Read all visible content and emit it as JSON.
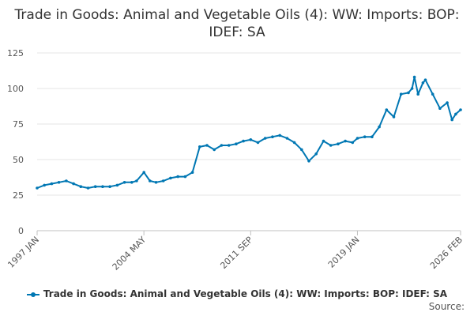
{
  "chart_data": {
    "type": "line",
    "title": "Trade in Goods: Animal and Vegetable Oils (4): WW: Imports: BOP: IDEF: SA",
    "xlabel": "",
    "ylabel": "",
    "ylim": [
      0,
      125
    ],
    "y_ticks": [
      0,
      25,
      50,
      75,
      100,
      125
    ],
    "x_tick_labels": [
      "1997 JAN",
      "2004 MAY",
      "2011 SEP",
      "2019 JAN",
      "2026 FEB"
    ],
    "grid": "horizontal",
    "legend_position": "bottom",
    "series": [
      {
        "name": "Trade in Goods: Animal and Vegetable Oils (4): WW: Imports: BOP: IDEF: SA",
        "color": "#0077b3",
        "points": [
          [
            "1997 JAN",
            30
          ],
          [
            "1997 JUL",
            32
          ],
          [
            "1998 JAN",
            33
          ],
          [
            "1998 JUL",
            34
          ],
          [
            "1999 JAN",
            35
          ],
          [
            "1999 JUL",
            33
          ],
          [
            "2000 JAN",
            31
          ],
          [
            "2000 JUL",
            30
          ],
          [
            "2001 JAN",
            31
          ],
          [
            "2001 JUL",
            31
          ],
          [
            "2002 JAN",
            31
          ],
          [
            "2002 JUL",
            32
          ],
          [
            "2003 JAN",
            34
          ],
          [
            "2003 JUL",
            34
          ],
          [
            "2003 NOV",
            35
          ],
          [
            "2004 MAY",
            41
          ],
          [
            "2004 OCT",
            35
          ],
          [
            "2005 MAR",
            34
          ],
          [
            "2005 SEP",
            35
          ],
          [
            "2006 MAR",
            37
          ],
          [
            "2006 SEP",
            38
          ],
          [
            "2007 MAR",
            38
          ],
          [
            "2007 SEP",
            41
          ],
          [
            "2008 MAR",
            59
          ],
          [
            "2008 SEP",
            60
          ],
          [
            "2009 MAR",
            57
          ],
          [
            "2009 SEP",
            60
          ],
          [
            "2010 MAR",
            60
          ],
          [
            "2010 SEP",
            61
          ],
          [
            "2011 MAR",
            63
          ],
          [
            "2011 SEP",
            64
          ],
          [
            "2012 MAR",
            62
          ],
          [
            "2012 SEP",
            65
          ],
          [
            "2013 MAR",
            66
          ],
          [
            "2013 SEP",
            67
          ],
          [
            "2014 MAR",
            65
          ],
          [
            "2014 SEP",
            62
          ],
          [
            "2015 MAR",
            57
          ],
          [
            "2015 SEP",
            49
          ],
          [
            "2016 MAR",
            54
          ],
          [
            "2016 SEP",
            63
          ],
          [
            "2017 MAR",
            60
          ],
          [
            "2017 SEP",
            61
          ],
          [
            "2018 MAR",
            63
          ],
          [
            "2018 SEP",
            62
          ],
          [
            "2019 JAN",
            65
          ],
          [
            "2019 JUL",
            66
          ],
          [
            "2020 JAN",
            66
          ],
          [
            "2020 JUL",
            73
          ],
          [
            "2021 JAN",
            85
          ],
          [
            "2021 JUL",
            80
          ],
          [
            "2022 JAN",
            96
          ],
          [
            "2022 JUL",
            97
          ],
          [
            "2022 OCT",
            100
          ],
          [
            "2022 DEC",
            108
          ],
          [
            "2023 MAR",
            96
          ],
          [
            "2023 JUL",
            104
          ],
          [
            "2023 SEP",
            106
          ],
          [
            "2024 MAR",
            96
          ],
          [
            "2024 SEP",
            86
          ],
          [
            "2025 MAR",
            90
          ],
          [
            "2025 JUL",
            78
          ],
          [
            "2025 OCT",
            82
          ],
          [
            "2026 FEB",
            85
          ]
        ]
      }
    ]
  },
  "source_label": "Source:"
}
